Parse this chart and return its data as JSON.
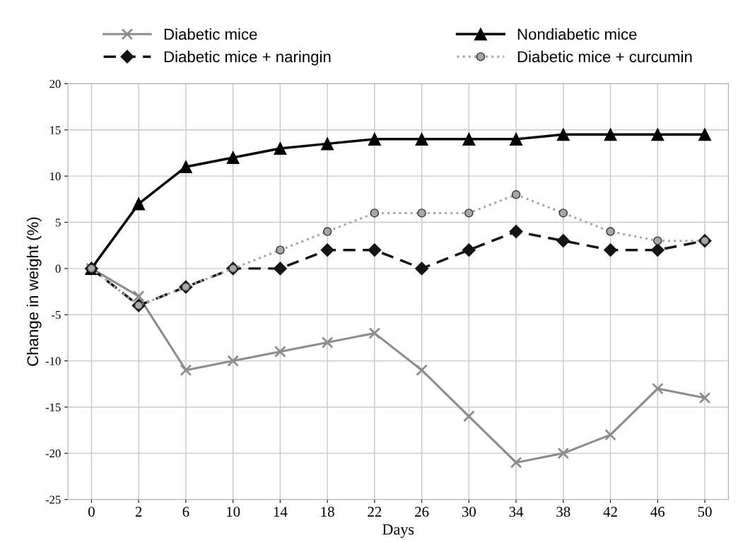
{
  "chart_data": {
    "type": "line",
    "xlabel": "Days",
    "ylabel": "Change in weight (%)",
    "categories": [
      "0",
      "2",
      "6",
      "10",
      "14",
      "18",
      "22",
      "26",
      "30",
      "34",
      "38",
      "42",
      "46",
      "50"
    ],
    "series": [
      {
        "name": "Diabetic mice",
        "color": "#8c8c8c",
        "marker": "cross",
        "line_style": "solid",
        "values": [
          0,
          -3,
          -11,
          -10,
          -9,
          -8,
          -7,
          -11,
          -16,
          -21,
          -20,
          -18,
          -13,
          -14
        ]
      },
      {
        "name": "Nondiabetic mice",
        "color": "#000000",
        "marker": "triangle",
        "line_style": "solid",
        "values": [
          0,
          7,
          11,
          12,
          13,
          13.5,
          14,
          14,
          14,
          14,
          14.5,
          14.5,
          14.5,
          14.5
        ]
      },
      {
        "name": "Diabetic mice + naringin",
        "color": "#141414",
        "marker": "diamond",
        "line_style": "dashed",
        "values": [
          0,
          -4,
          -2,
          0,
          0,
          2,
          2,
          0,
          2,
          4,
          3,
          2,
          2,
          3
        ]
      },
      {
        "name": "Diabetic mice + curcumin",
        "color": "#a6a6a6",
        "marker": "circle",
        "line_style": "dotted",
        "values": [
          0,
          -4,
          -2,
          0,
          2,
          4,
          6,
          6,
          6,
          8,
          6,
          4,
          3,
          3
        ]
      }
    ],
    "ylim": [
      -25,
      20
    ],
    "yticks": [
      -25,
      -20,
      -15,
      -10,
      -5,
      0,
      5,
      10,
      15,
      20
    ],
    "grid": true,
    "legend": "top"
  }
}
